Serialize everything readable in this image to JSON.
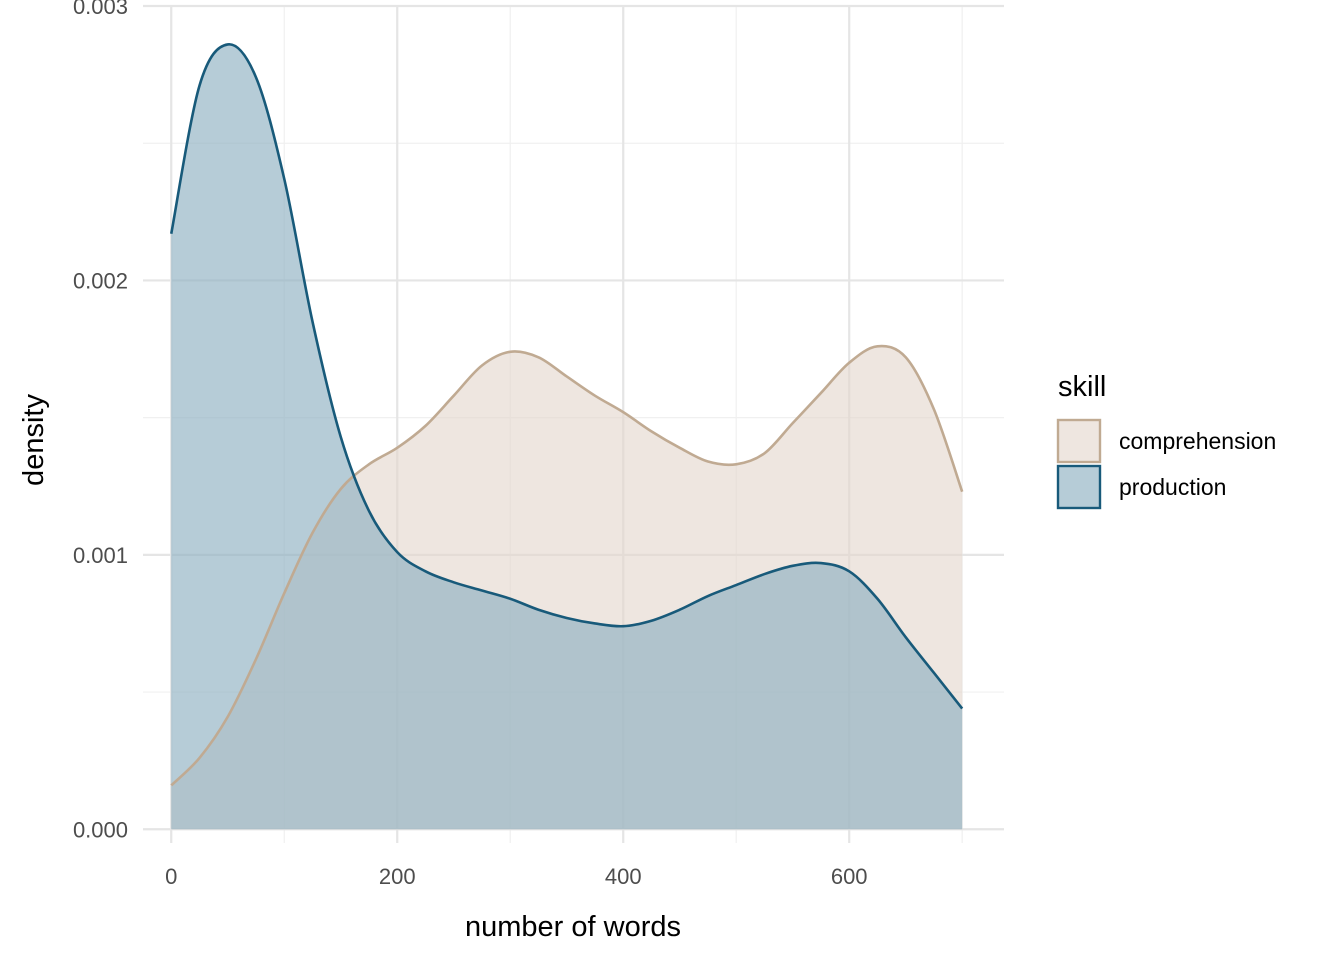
{
  "chart_data": {
    "type": "area",
    "subtype": "density",
    "title": "",
    "xlabel": "number of words",
    "ylabel": "density",
    "xlim": [
      -25,
      737
    ],
    "ylim": [
      -5e-05,
      0.003
    ],
    "x_ticks": [
      0,
      200,
      400,
      600
    ],
    "x_tick_labels": [
      "0",
      "200",
      "400",
      "600"
    ],
    "y_ticks": [
      0,
      0.001,
      0.002,
      0.003
    ],
    "y_tick_labels": [
      "0.000",
      "0.001",
      "0.002",
      "0.003"
    ],
    "grid": true,
    "legend": {
      "title": "skill",
      "position": "right"
    },
    "series": [
      {
        "name": "comprehension",
        "color": "#c0aa92",
        "fill": "#e2d6cb",
        "fill_opacity": 0.6,
        "x": [
          0,
          25,
          50,
          75,
          100,
          125,
          150,
          175,
          200,
          225,
          250,
          275,
          300,
          325,
          350,
          375,
          400,
          425,
          450,
          475,
          500,
          525,
          550,
          575,
          600,
          625,
          650,
          675,
          700
        ],
        "values": [
          0.00016,
          0.00026,
          0.00041,
          0.00062,
          0.00086,
          0.00108,
          0.00124,
          0.00133,
          0.00139,
          0.00147,
          0.00158,
          0.00169,
          0.00174,
          0.00172,
          0.00165,
          0.00158,
          0.00152,
          0.00145,
          0.00139,
          0.00134,
          0.00133,
          0.00137,
          0.00148,
          0.00159,
          0.0017,
          0.00176,
          0.00172,
          0.00153,
          0.00123
        ]
      },
      {
        "name": "production",
        "color": "#185a7a",
        "fill": "#8fb0c2",
        "fill_opacity": 0.65,
        "x": [
          0,
          25,
          50,
          75,
          100,
          125,
          150,
          175,
          200,
          225,
          250,
          275,
          300,
          325,
          350,
          375,
          400,
          425,
          450,
          475,
          500,
          525,
          550,
          575,
          600,
          625,
          650,
          675,
          700
        ],
        "values": [
          0.00217,
          0.00271,
          0.00286,
          0.00274,
          0.00237,
          0.00185,
          0.00143,
          0.00116,
          0.00101,
          0.00094,
          0.0009,
          0.00087,
          0.00084,
          0.0008,
          0.00077,
          0.00075,
          0.00074,
          0.00076,
          0.0008,
          0.00085,
          0.00089,
          0.00093,
          0.00096,
          0.00097,
          0.00094,
          0.00084,
          0.0007,
          0.00057,
          0.00044
        ]
      }
    ]
  }
}
